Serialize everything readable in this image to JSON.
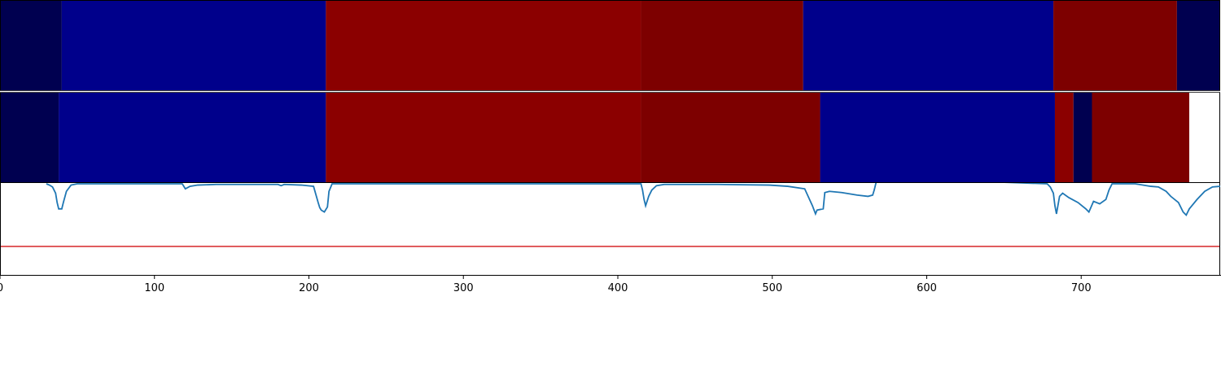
{
  "chart_data": {
    "type": "heatmap",
    "title": "",
    "xlabel": "",
    "ylabel": "",
    "xlim": [
      0,
      790
    ],
    "xticks": [
      0,
      100,
      200,
      300,
      400,
      500,
      600,
      700
    ],
    "grid": false,
    "rows": [
      {
        "segments": [
          {
            "start": 0,
            "end": 40,
            "color": "#000050"
          },
          {
            "start": 40,
            "end": 211,
            "color": "#00008b"
          },
          {
            "start": 211,
            "end": 415,
            "color": "#8b0000"
          },
          {
            "start": 415,
            "end": 520,
            "color": "#7d0000"
          },
          {
            "start": 520,
            "end": 682,
            "color": "#00008b"
          },
          {
            "start": 682,
            "end": 762,
            "color": "#7d0000"
          },
          {
            "start": 762,
            "end": 790,
            "color": "#000050"
          }
        ]
      },
      {
        "segments": [
          {
            "start": 0,
            "end": 38,
            "color": "#000050"
          },
          {
            "start": 38,
            "end": 211,
            "color": "#00008b"
          },
          {
            "start": 211,
            "end": 415,
            "color": "#8b0000"
          },
          {
            "start": 415,
            "end": 531,
            "color": "#7d0000"
          },
          {
            "start": 531,
            "end": 683,
            "color": "#00008b"
          },
          {
            "start": 683,
            "end": 695,
            "color": "#8b0000"
          },
          {
            "start": 695,
            "end": 707,
            "color": "#000050"
          },
          {
            "start": 707,
            "end": 770,
            "color": "#7d0000"
          }
        ]
      }
    ],
    "line_series": {
      "color": "#1f77b4",
      "ylim": [
        0,
        1
      ],
      "points": [
        [
          30,
          1.0
        ],
        [
          32,
          0.98
        ],
        [
          34,
          0.95
        ],
        [
          36,
          0.85
        ],
        [
          37,
          0.7
        ],
        [
          38,
          0.6
        ],
        [
          40,
          0.6
        ],
        [
          41,
          0.7
        ],
        [
          43,
          0.88
        ],
        [
          46,
          0.98
        ],
        [
          50,
          1.0
        ],
        [
          118,
          1.0
        ],
        [
          120,
          0.92
        ],
        [
          123,
          0.96
        ],
        [
          128,
          0.98
        ],
        [
          140,
          0.99
        ],
        [
          180,
          0.99
        ],
        [
          182,
          0.97
        ],
        [
          184,
          0.99
        ],
        [
          195,
          0.98
        ],
        [
          203,
          0.96
        ],
        [
          206,
          0.7
        ],
        [
          207,
          0.62
        ],
        [
          208,
          0.58
        ],
        [
          210,
          0.55
        ],
        [
          212,
          0.63
        ],
        [
          213,
          0.88
        ],
        [
          215,
          1.0
        ],
        [
          415,
          1.0
        ],
        [
          416,
          0.9
        ],
        [
          417,
          0.75
        ],
        [
          418,
          0.65
        ],
        [
          420,
          0.8
        ],
        [
          422,
          0.9
        ],
        [
          425,
          0.97
        ],
        [
          430,
          0.99
        ],
        [
          465,
          0.99
        ],
        [
          498,
          0.98
        ],
        [
          510,
          0.96
        ],
        [
          521,
          0.92
        ],
        [
          526,
          0.65
        ],
        [
          528,
          0.52
        ],
        [
          529,
          0.58
        ],
        [
          533,
          0.6
        ],
        [
          534,
          0.86
        ],
        [
          537,
          0.88
        ],
        [
          545,
          0.86
        ],
        [
          555,
          0.82
        ],
        [
          562,
          0.8
        ],
        [
          565,
          0.82
        ],
        [
          566,
          0.9
        ],
        [
          568,
          1.1
        ],
        [
          678,
          1.0
        ],
        [
          680,
          0.95
        ],
        [
          682,
          0.85
        ],
        [
          683,
          0.65
        ],
        [
          684,
          0.52
        ],
        [
          686,
          0.8
        ],
        [
          688,
          0.85
        ],
        [
          692,
          0.78
        ],
        [
          698,
          0.7
        ],
        [
          703,
          0.6
        ],
        [
          705,
          0.55
        ],
        [
          708,
          0.72
        ],
        [
          712,
          0.68
        ],
        [
          716,
          0.75
        ],
        [
          718,
          0.9
        ],
        [
          720,
          1.0
        ],
        [
          735,
          1.0
        ],
        [
          745,
          0.96
        ],
        [
          750,
          0.95
        ],
        [
          755,
          0.88
        ],
        [
          758,
          0.8
        ],
        [
          763,
          0.7
        ],
        [
          766,
          0.55
        ],
        [
          768,
          0.5
        ],
        [
          770,
          0.6
        ],
        [
          775,
          0.75
        ],
        [
          780,
          0.88
        ],
        [
          785,
          0.95
        ],
        [
          790,
          0.96
        ]
      ]
    },
    "threshold": {
      "value": 0.0,
      "color": "#d62728"
    }
  }
}
